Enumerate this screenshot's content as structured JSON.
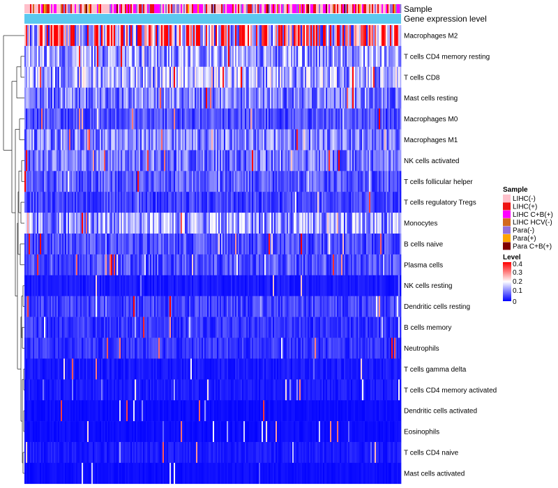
{
  "chart_data": {
    "type": "heatmap",
    "annotation_tracks": [
      "Sample",
      "Gene expression level"
    ],
    "rows": [
      "Macrophages M2",
      "T cells CD4 memory resting",
      "T cells CD8",
      "Mast cells resting",
      "Macrophages M0",
      "Macrophages M1",
      "NK cells activated",
      "T cells follicular helper",
      "T cells regulatory  Tregs",
      "Monocytes",
      "B cells naive",
      "Plasma cells",
      "NK cells resting",
      "Dendritic cells resting",
      "B cells memory",
      "Neutrophils",
      "T cells gamma delta",
      "T cells CD4 memory activated",
      "Dendritic cells activated",
      "Eosinophils",
      "T cells CD4 naive",
      "Mast cells activated"
    ],
    "row_mean_levels": [
      0.3,
      0.12,
      0.13,
      0.1,
      0.06,
      0.1,
      0.09,
      0.07,
      0.05,
      0.12,
      0.06,
      0.06,
      0.02,
      0.05,
      0.04,
      0.04,
      0.02,
      0.02,
      0.01,
      0.01,
      0.02,
      0.01
    ],
    "n_samples": 270,
    "sample_legend": {
      "title": "Sample",
      "entries": [
        {
          "label": "LIHC(-)",
          "color": "#ffc0cb"
        },
        {
          "label": "LIHC(+)",
          "color": "#ee1111"
        },
        {
          "label": "LIHC C+B(+)",
          "color": "#ff00ff"
        },
        {
          "label": "LIHC HCV(-)",
          "color": "#d2691e"
        },
        {
          "label": "Para(-)",
          "color": "#9370db"
        },
        {
          "label": "Para(+)",
          "color": "#ffa500"
        },
        {
          "label": "Para C+B(+)",
          "color": "#800000"
        }
      ]
    },
    "level_legend": {
      "title": "Level",
      "ticks": [
        "0.4",
        "0.3",
        "0.2",
        "0.1",
        "0"
      ],
      "range": [
        0,
        0.4
      ],
      "colors": [
        "#0000ff",
        "#ffffff",
        "#ff0000"
      ]
    },
    "gene_expression_color": "#5bc8ef"
  }
}
